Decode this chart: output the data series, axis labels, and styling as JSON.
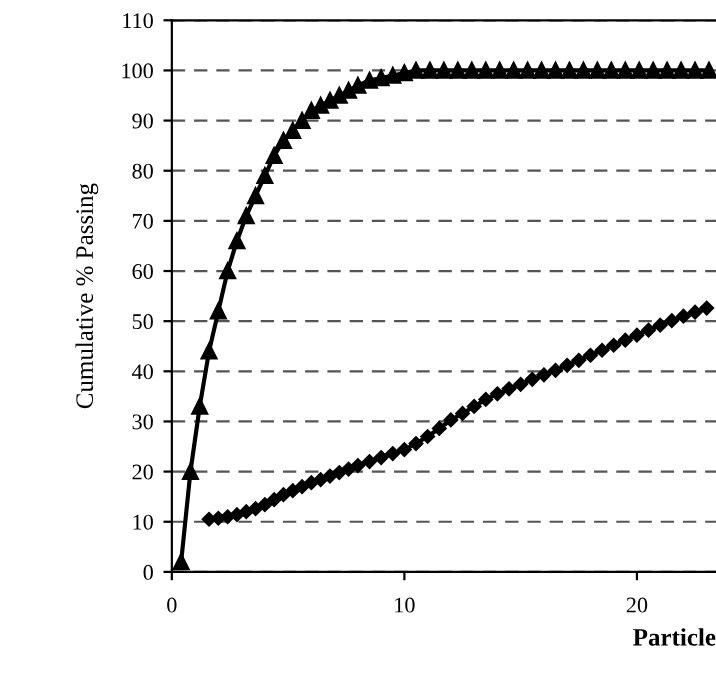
{
  "chart_data": {
    "type": "line",
    "xlabel": "Particle",
    "ylabel": "Cumulative % Passing",
    "xlim": [
      0,
      23.4
    ],
    "xticks": [
      0,
      10,
      20
    ],
    "ylim": [
      0,
      110
    ],
    "yticks": [
      0,
      10,
      20,
      30,
      40,
      50,
      60,
      70,
      80,
      90,
      100,
      110
    ],
    "grid": "y",
    "line_style": "solid",
    "series": [
      {
        "color": "#000000",
        "marker": "triangle",
        "x": [
          0.4,
          0.8,
          1.2,
          1.6,
          2.0,
          2.4,
          2.8,
          3.2,
          3.6,
          4.0,
          4.4,
          4.8,
          5.2,
          5.6,
          6.0,
          6.4,
          6.8,
          7.2,
          7.6,
          8.0,
          8.5,
          9.0,
          9.5,
          10.0,
          10.5,
          11.1,
          11.7,
          12.3,
          12.9,
          13.5,
          14.1,
          14.7,
          15.3,
          15.9,
          16.5,
          17.1,
          17.7,
          18.3,
          18.9,
          19.5,
          20.1,
          20.7,
          21.3,
          21.9,
          22.5,
          23.1
        ],
        "values": [
          2,
          20,
          33,
          44,
          52,
          60,
          66,
          71,
          75,
          79,
          83,
          86,
          88,
          90,
          92,
          93,
          94,
          95,
          96,
          97,
          98,
          98.5,
          99,
          99.5,
          100,
          100,
          100,
          100,
          100,
          100,
          100,
          100,
          100,
          100,
          100,
          100,
          100,
          100,
          100,
          100,
          100,
          100,
          100,
          100,
          100,
          100
        ]
      },
      {
        "color": "#000000",
        "marker": "diamond",
        "x": [
          1.6,
          2.0,
          2.4,
          2.8,
          3.2,
          3.6,
          4.0,
          4.4,
          4.8,
          5.2,
          5.6,
          6.0,
          6.4,
          6.8,
          7.2,
          7.6,
          8.0,
          8.5,
          9.0,
          9.5,
          10.0,
          10.5,
          11.0,
          11.5,
          12.0,
          12.5,
          13.0,
          13.5,
          14.0,
          14.5,
          15.0,
          15.5,
          16.0,
          16.5,
          17.0,
          17.5,
          18.0,
          18.5,
          19.0,
          19.5,
          20.0,
          20.5,
          21.0,
          21.5,
          22.0,
          22.5,
          23.0
        ],
        "values": [
          10.5,
          10.7,
          11,
          11.4,
          12,
          12.6,
          13.4,
          14.4,
          15.4,
          16.2,
          17,
          17.8,
          18.4,
          19.1,
          19.8,
          20.5,
          21.2,
          22,
          22.8,
          23.6,
          24.4,
          25.6,
          27,
          28.6,
          30.3,
          31.6,
          33,
          34.4,
          35.5,
          36.5,
          37.4,
          38.4,
          39.3,
          40.2,
          41.2,
          42.2,
          43.2,
          44.2,
          45.2,
          46.2,
          47.2,
          48.2,
          49.2,
          50.1,
          51,
          51.8,
          52.6
        ]
      }
    ]
  }
}
